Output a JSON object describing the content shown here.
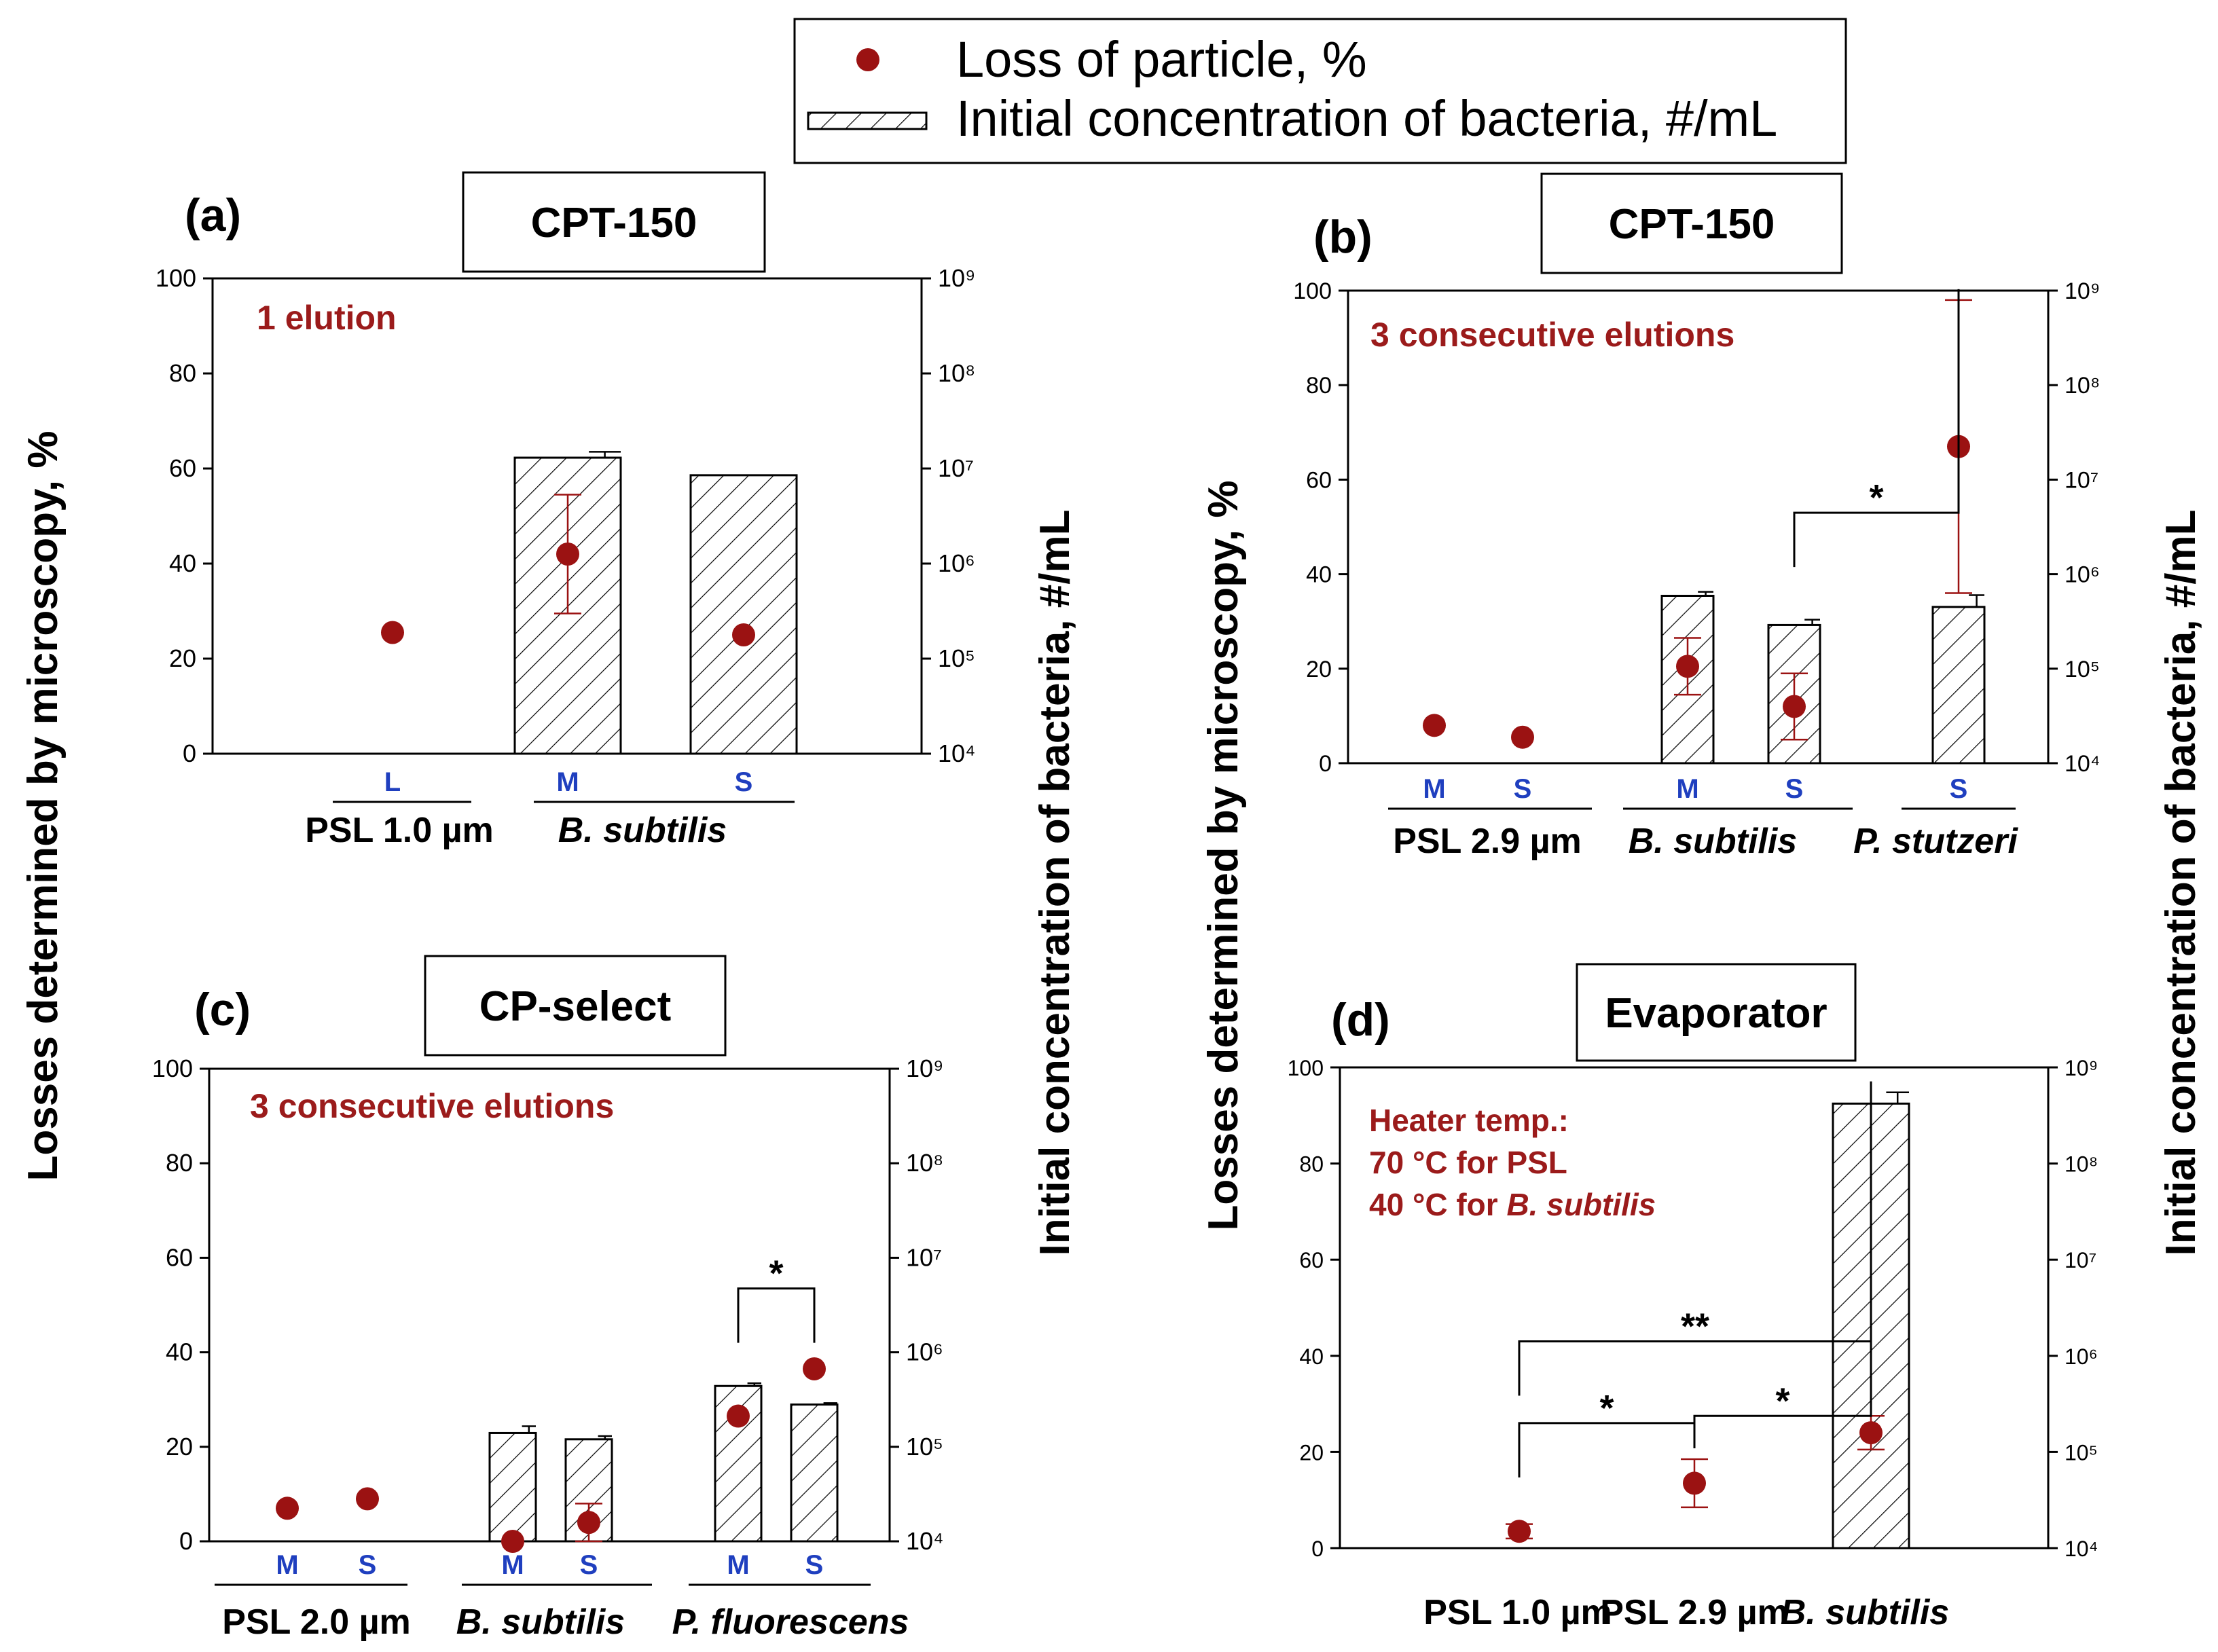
{
  "colors": {
    "marker": "#9b1212",
    "accent_text": "#9b1b1b",
    "letter_blue": "#1f3fbf",
    "frame": "#000000"
  },
  "legend": {
    "marker_label": "Loss of particle, %",
    "bar_label": "Initial concentration of bacteria, #/mL"
  },
  "y_left_title": "Losses determined by microscopy, %",
  "y_right_title": "Initial concentration of bacteria, #/mL",
  "chart_data": [
    {
      "type": "bar",
      "panel": "(a)",
      "instrument": "CPT-150",
      "note": [
        "1 elution"
      ],
      "ylim": [
        0,
        100
      ],
      "yticks": [
        "0",
        "20",
        "40",
        "60",
        "80",
        "100"
      ],
      "y2_ticks": [
        "10⁴",
        "10⁵",
        "10⁶",
        "10⁷",
        "10⁸",
        "10⁹"
      ],
      "y2_scale": "log",
      "y2lim": [
        10000,
        1000000000
      ],
      "grid": false,
      "categories": [
        "L",
        "M",
        "S"
      ],
      "groups": [
        {
          "label": "PSL 1.0 µm",
          "italic": false,
          "members": [
            "L"
          ]
        },
        {
          "label": "B. subtilis",
          "italic": true,
          "members": [
            "M",
            "S"
          ]
        }
      ],
      "series": [
        {
          "name": "Loss of particle, %",
          "kind": "point",
          "values": [
            25.5,
            42,
            25
          ],
          "err": [
            0,
            12.5,
            0
          ]
        },
        {
          "name": "Initial concentration of bacteria, #/mL",
          "kind": "bar",
          "values": [
            null,
            13000000,
            8500000
          ],
          "err_up": [
            0,
            2000000,
            0
          ]
        }
      ],
      "brackets": []
    },
    {
      "type": "bar",
      "panel": "(b)",
      "instrument": "CPT-150",
      "note": [
        "3 consecutive elutions"
      ],
      "ylim": [
        0,
        100
      ],
      "yticks": [
        "0",
        "20",
        "40",
        "60",
        "80",
        "100"
      ],
      "y2_ticks": [
        "10⁴",
        "10⁵",
        "10⁶",
        "10⁷",
        "10⁸",
        "10⁹"
      ],
      "y2_scale": "log",
      "y2lim": [
        10000,
        1000000000
      ],
      "grid": false,
      "categories": [
        "M",
        "S",
        "M",
        "S",
        "S"
      ],
      "groups": [
        {
          "label": "PSL 2.9 µm",
          "italic": false,
          "members": [
            0,
            1
          ]
        },
        {
          "label": "B. subtilis",
          "italic": true,
          "members": [
            2,
            3
          ]
        },
        {
          "label": "P. stutzeri",
          "italic": true,
          "members": [
            4
          ]
        }
      ],
      "series": [
        {
          "name": "Loss of particle, %",
          "kind": "point",
          "values": [
            8,
            5.5,
            20.5,
            12,
            67
          ],
          "err": [
            0,
            0,
            6,
            7,
            31
          ]
        },
        {
          "name": "Initial concentration of bacteria, #/mL",
          "kind": "bar",
          "values": [
            null,
            null,
            590000,
            290000,
            450000
          ],
          "err_up": [
            0,
            0,
            60000,
            40000,
            150000
          ]
        }
      ],
      "brackets": [
        {
          "from": 3,
          "to": 4,
          "label": "*"
        }
      ]
    },
    {
      "type": "bar",
      "panel": "(c)",
      "instrument": "CP-select",
      "note": [
        "3 consecutive elutions"
      ],
      "ylim": [
        0,
        100
      ],
      "yticks": [
        "0",
        "20",
        "40",
        "60",
        "80",
        "100"
      ],
      "y2_ticks": [
        "10⁴",
        "10⁵",
        "10⁶",
        "10⁷",
        "10⁸",
        "10⁹"
      ],
      "y2_scale": "log",
      "y2lim": [
        10000,
        1000000000
      ],
      "grid": false,
      "categories": [
        "M",
        "S",
        "M",
        "S",
        "M",
        "S"
      ],
      "groups": [
        {
          "label": "PSL 2.0 µm",
          "italic": false,
          "members": [
            0,
            1
          ]
        },
        {
          "label": "B. subtilis",
          "italic": true,
          "members": [
            2,
            3
          ]
        },
        {
          "label": "P. fluorescens",
          "italic": true,
          "members": [
            4,
            5
          ]
        }
      ],
      "series": [
        {
          "name": "Loss of particle, %",
          "kind": "point",
          "values": [
            7,
            9,
            0,
            4,
            26.5,
            36.5
          ],
          "err": [
            0,
            0,
            0,
            4,
            0,
            0
          ]
        },
        {
          "name": "Initial concentration of bacteria, #/mL",
          "kind": "bar",
          "values": [
            null,
            null,
            140000,
            120000,
            440000,
            280000
          ],
          "err_up": [
            0,
            0,
            25000,
            10000,
            30000,
            10000
          ]
        }
      ],
      "brackets": [
        {
          "from": 4,
          "to": 5,
          "label": "*"
        }
      ]
    },
    {
      "type": "bar",
      "panel": "(d)",
      "instrument": "Evaporator",
      "note": [
        "Heater temp.:",
        "70 °C for PSL",
        "40 °C for B. subtilis"
      ],
      "ylim": [
        0,
        100
      ],
      "yticks": [
        "0",
        "20",
        "40",
        "60",
        "80",
        "100"
      ],
      "y2_ticks": [
        "10⁴",
        "10⁵",
        "10⁶",
        "10⁷",
        "10⁸",
        "10⁹"
      ],
      "y2_scale": "log",
      "y2lim": [
        10000,
        1000000000
      ],
      "grid": false,
      "categories": [
        "PSL 1.0 µm",
        "PSL 2.9 µm",
        "B. subtilis"
      ],
      "groups": [
        {
          "label": "PSL 1.0 µm",
          "italic": false,
          "members": [
            0
          ]
        },
        {
          "label": "PSL 2.9 µm",
          "italic": false,
          "members": [
            1
          ]
        },
        {
          "label": "B. subtilis",
          "italic": true,
          "members": [
            2
          ]
        }
      ],
      "series": [
        {
          "name": "Loss of particle, %",
          "kind": "point",
          "values": [
            3.5,
            13.5,
            24
          ],
          "err": [
            1.5,
            5,
            3.5
          ]
        },
        {
          "name": "Initial concentration of bacteria, #/mL",
          "kind": "bar",
          "values": [
            null,
            null,
            420000000
          ],
          "err_up": [
            0,
            0,
            130000000
          ]
        }
      ],
      "brackets": [
        {
          "from": 0,
          "to": 1,
          "label": "*"
        },
        {
          "from": 1,
          "to": 2,
          "label": "*"
        },
        {
          "from": 0,
          "to": 2,
          "label": "**"
        }
      ]
    }
  ]
}
